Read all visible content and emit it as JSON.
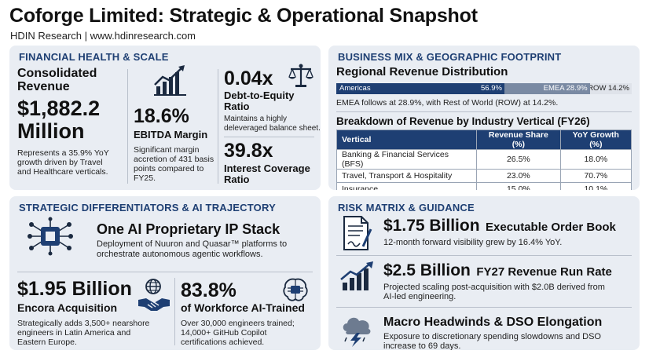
{
  "header": {
    "title": "Coforge Limited: Strategic & Operational Snapshot",
    "subtitle": "HDIN Research | www.hdinresearch.com"
  },
  "financial": {
    "title": "FINANCIAL HEALTH & SCALE",
    "revenue_label_line1": "Consolidated",
    "revenue_label_line2": "Revenue",
    "revenue_value_line1": "$1,882.2",
    "revenue_value_line2": "Million",
    "revenue_desc_line1": "Represents a 35.9% YoY",
    "revenue_desc_line2": "growth driven by Travel",
    "revenue_desc_line3": "and Healthcare verticals.",
    "ebitda_value": "18.6%",
    "ebitda_label": "EBITDA Margin",
    "ebitda_desc_line1": "Significant margin",
    "ebitda_desc_line2": "accretion of 431 basis",
    "ebitda_desc_line3": "points compared to",
    "ebitda_desc_line4": "FY25.",
    "de_value": "0.04x",
    "de_label_line1": "Debt-to-Equity",
    "de_label_line2": "Ratio",
    "de_desc_line1": "Maintains a highly",
    "de_desc_line2": "deleveraged balance sheet.",
    "ic_value": "39.8x",
    "ic_label_line1": "Interest Coverage",
    "ic_label_line2": "Ratio",
    "icons": [
      "growth-chart-icon",
      "scales-icon"
    ]
  },
  "business": {
    "title": "BUSINESS MIX & GEOGRAPHIC FOOTPRINT",
    "regional_title": "Regional Revenue Distribution",
    "regions": [
      {
        "name": "Americas",
        "share": 56.9,
        "label": "56.9%",
        "color": "#1e3f73"
      },
      {
        "name": "EMEA",
        "share": 28.9,
        "label": "EMEA 28.9%",
        "color": "#7a8aa3"
      },
      {
        "name": "ROW",
        "share": 14.2,
        "label": "ROW 14.2%",
        "color": "#dfe3ea"
      }
    ],
    "regional_note": "EMEA follows at 28.9%, with Rest of World (ROW) at 14.2%.",
    "vertical_title": "Breakdown of Revenue by Industry Vertical (FY26)",
    "table_headers": [
      "Vertical",
      "Revenue Share (%)",
      "YoY Growth (%)"
    ],
    "table_rows": [
      [
        "Banking & Financial Services (BFS)",
        "26.5%",
        "18.0%"
      ],
      [
        "Travel, Transport & Hospitality",
        "23.0%",
        "70.7%"
      ],
      [
        "Insurance",
        "15.0%",
        "10.1%"
      ]
    ]
  },
  "strategic": {
    "title": "STRATEGIC DIFFERENTIATORS & AI TRAJECTORY",
    "ai_title": "One AI Proprietary IP Stack",
    "ai_desc_line1": "Deployment of Nuuron and Quasar™ platforms to",
    "ai_desc_line2": "orchestrate autonomous agentic workflows.",
    "encora_value": "$1.95 Billion",
    "encora_label": "Encora Acquisition",
    "encora_desc_line1": "Strategically adds 3,500+ nearshore",
    "encora_desc_line2": "engineers in Latin America and",
    "encora_desc_line3": "Eastern Europe.",
    "ai_trained_value": "83.8%",
    "ai_trained_label": "of Workforce AI-Trained",
    "ai_trained_desc_line1": "Over 30,000 engineers trained;",
    "ai_trained_desc_line2": "14,000+ GitHub Copilot",
    "ai_trained_desc_line3": "certifications achieved.",
    "icons": [
      "chip-network-icon",
      "globe-icon",
      "handshake-icon",
      "brain-chip-icon"
    ]
  },
  "risk": {
    "title": "RISK MATRIX & GUIDANCE",
    "order_value": "$1.75 Billion",
    "order_label": "Executable Order Book",
    "order_desc": "12-month forward visibility grew by 16.4% YoY.",
    "runrate_value": "$2.5 Billion",
    "runrate_label": "FY27 Revenue Run Rate",
    "runrate_desc_line1": "Projected scaling post-acquisition with $2.0B derived from",
    "runrate_desc_line2": "AI-led engineering.",
    "macro_title": "Macro Headwinds & DSO Elongation",
    "macro_desc_line1": "Exposure to discretionary spending slowdowns and DSO",
    "macro_desc_line2": "increase to 69 days.",
    "icons": [
      "contract-icon",
      "rising-chart-icon",
      "storm-cloud-icon"
    ]
  }
}
